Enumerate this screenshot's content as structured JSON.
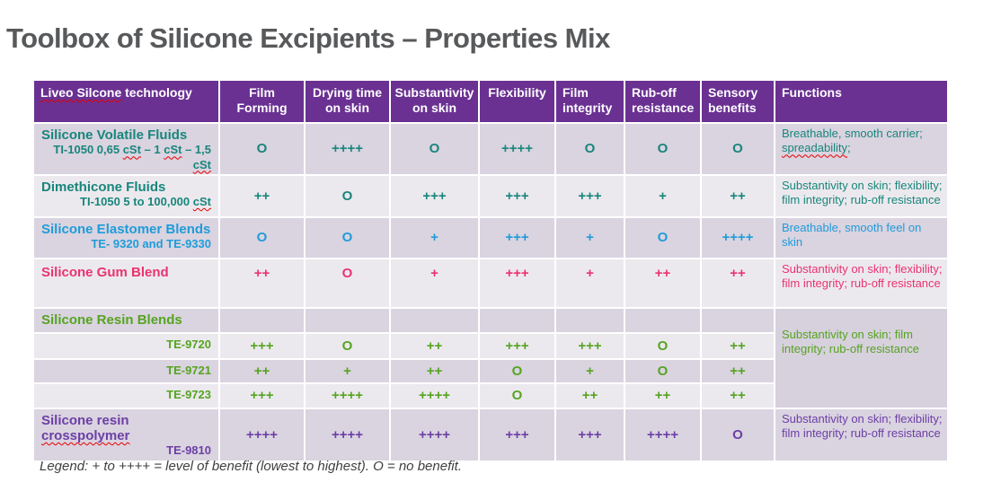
{
  "page": {
    "title": "Toolbox of Silicone Excipients – Properties Mix",
    "legend": "Legend: + to ++++ = level of benefit (lowest to highest). O = no benefit."
  },
  "colors": {
    "header_bg": "#6A3192",
    "header_text": "#FFFFFF",
    "row_dark": "#DAD3E0",
    "row_light": "#ECE9EE",
    "merged_bg": "#D7D0DD",
    "teal": "#17867B",
    "blue": "#1F9CD9",
    "pink": "#E9336F",
    "green": "#55A421",
    "purple": "#6C40A5",
    "title_text": "#58595B",
    "legend_text": "#404040",
    "squiggle": "#E60000"
  },
  "squiggle_words": [
    "Liveo Silcone",
    "cSt",
    "spreadability",
    "crosspolymer"
  ],
  "table": {
    "columns": [
      "Liveo Silcone technology",
      "Film Forming",
      "Drying time on skin",
      "Substantivity on skin",
      "Flexibility",
      "Film integrity",
      "Rub-off resistance",
      "Sensory benefits",
      "Functions"
    ],
    "rows": [
      {
        "id": "silicone-volatile-fluids",
        "name": "Silicone Volatile Fluids",
        "sub": "TI-1050 0,65 cSt – 1 cSt – 1,5 cSt",
        "color": "teal",
        "shade": "dark",
        "values": [
          "O",
          "++++",
          "O",
          "++++",
          "O",
          "O",
          "O"
        ],
        "functions": "Breathable, smooth carrier; spreadability;"
      },
      {
        "id": "dimethicone-fluids",
        "name": "Dimethicone Fluids",
        "sub": "TI-1050 5 to 100,000 cSt",
        "color": "teal",
        "shade": "light",
        "values": [
          "++",
          "O",
          "+++",
          "+++",
          "+++",
          "+",
          "++"
        ],
        "functions": "Substantivity on skin; flexibility; film integrity; rub-off resistance"
      },
      {
        "id": "silicone-elastomer-blends",
        "name": "Silicone Elastomer Blends",
        "sub": "TE- 9320 and TE-9330",
        "color": "blue",
        "shade": "dark",
        "values": [
          "O",
          "O",
          "+",
          "+++",
          "+",
          "O",
          "++++"
        ],
        "functions": "Breathable, smooth feel on skin"
      },
      {
        "id": "silicone-gum-blend",
        "name": "Silicone Gum Blend",
        "sub": "",
        "color": "pink",
        "shade": "light",
        "tall": true,
        "values": [
          "++",
          "O",
          "+",
          "+++",
          "+",
          "++",
          "++"
        ],
        "functions": "Substantivity on skin; flexibility; film integrity; rub-off resistance"
      },
      {
        "id": "silicone-resin-blends",
        "name": "Silicone Resin Blends",
        "sub": "",
        "color": "green",
        "shade": "dark",
        "values": [
          "",
          "",
          "",
          "",
          "",
          "",
          ""
        ],
        "functions_span": {
          "text": "Substantivity on skin; film integrity; rub-off resistance",
          "rows": 4
        }
      },
      {
        "id": "te-9720",
        "name": "",
        "sub": "TE-9720",
        "color": "green",
        "shade": "light",
        "values": [
          "+++",
          "O",
          "++",
          "+++",
          "+++",
          "O",
          "++"
        ]
      },
      {
        "id": "te-9721",
        "name": "",
        "sub": "TE-9721",
        "color": "green",
        "shade": "dark",
        "values": [
          "++",
          "+",
          "++",
          "O",
          "+",
          "O",
          "++"
        ]
      },
      {
        "id": "te-9723",
        "name": "",
        "sub": "TE-9723",
        "color": "green",
        "shade": "light",
        "values": [
          "+++",
          "++++",
          "++++",
          "O",
          "++",
          "++",
          "++"
        ]
      },
      {
        "id": "silicone-resin-crosspolymer",
        "name": "Silicone resin crosspolymer",
        "sub": "TE-9810",
        "color": "purple",
        "shade": "dark",
        "values": [
          "++++",
          "++++",
          "++++",
          "+++",
          "+++",
          "++++",
          "O"
        ],
        "functions": "Substantivity on skin; flexibility; film integrity; rub-off resistance"
      }
    ]
  }
}
